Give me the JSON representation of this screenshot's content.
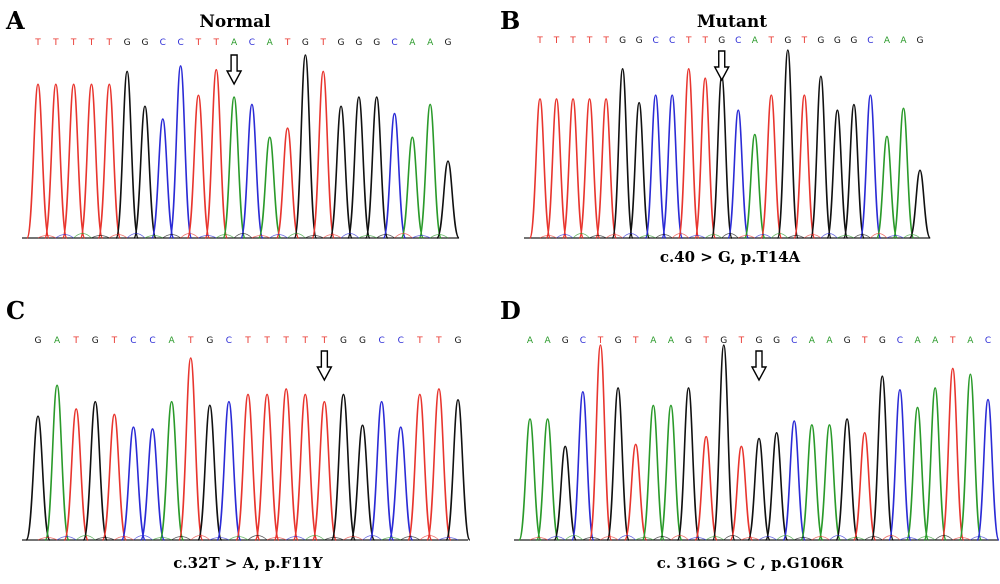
{
  "colors": {
    "A": "#2a9a2a",
    "T": "#e8352e",
    "G": "#111111",
    "C": "#2b2bd6"
  },
  "chart_data": [
    {
      "type": "line",
      "label": "A",
      "title": "Normal",
      "caption": "",
      "sequence": "TTTTTGGCCTTACATGTGGGCAAG",
      "peaks": [
        0.84,
        0.84,
        0.84,
        0.84,
        0.84,
        0.91,
        0.72,
        0.65,
        0.94,
        0.78,
        0.92,
        0.77,
        0.73,
        0.55,
        0.6,
        1.0,
        0.91,
        0.72,
        0.77,
        0.77,
        0.68,
        0.55,
        0.73,
        0.42
      ],
      "arrow_index": 11
    },
    {
      "type": "line",
      "label": "B",
      "title": "Mutant",
      "caption": "c.40 > G, p.T14A",
      "sequence": "TTTTTGGCCTTGCATGTGGGCAAG",
      "peaks": [
        0.74,
        0.74,
        0.74,
        0.74,
        0.74,
        0.9,
        0.72,
        0.76,
        0.76,
        0.9,
        0.85,
        0.86,
        0.68,
        0.55,
        0.76,
        1.0,
        0.76,
        0.86,
        0.68,
        0.71,
        0.76,
        0.54,
        0.69,
        0.36
      ],
      "arrow_index": 11
    },
    {
      "type": "line",
      "label": "C",
      "title": "",
      "caption": "c.32T > A, p.F11Y",
      "sequence": "GATGTCCATGCTTTTTGGCCTTG",
      "peaks": [
        0.68,
        0.85,
        0.72,
        0.76,
        0.69,
        0.62,
        0.61,
        0.76,
        1.0,
        0.74,
        0.76,
        0.8,
        0.8,
        0.83,
        0.8,
        0.76,
        0.8,
        0.63,
        0.76,
        0.62,
        0.8,
        0.83,
        0.77
      ],
      "arrow_index": 15
    },
    {
      "type": "line",
      "label": "D",
      "title": "",
      "caption": "c. 316G > C , p.G106R",
      "sequence": "AAGCTGTAAGTGTGGCAAGTGCAATAC",
      "peaks": [
        0.62,
        0.62,
        0.48,
        0.76,
        1.0,
        0.78,
        0.49,
        0.69,
        0.69,
        0.78,
        0.53,
        1.0,
        0.48,
        0.52,
        0.55,
        0.61,
        0.59,
        0.59,
        0.62,
        0.55,
        0.84,
        0.77,
        0.68,
        0.78,
        0.88,
        0.85,
        0.72
      ],
      "arrow_index": 13
    }
  ]
}
